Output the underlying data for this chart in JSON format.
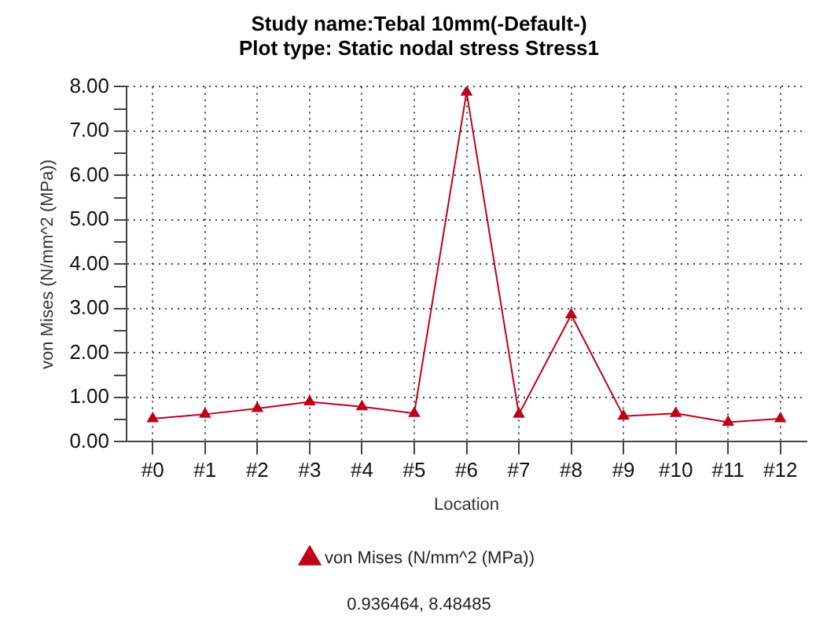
{
  "chart_data": {
    "type": "line",
    "title": "Study name:Tebal 10mm(-Default-)",
    "subtitle": "Plot type: Static nodal stress Stress1",
    "xlabel": "Location",
    "ylabel": "von Mises (N/mm^2 (MPa))",
    "categories": [
      "#0",
      "#1",
      "#2",
      "#3",
      "#4",
      "#5",
      "#6",
      "#7",
      "#8",
      "#9",
      "#10",
      "#11",
      "#12"
    ],
    "series": [
      {
        "name": "von Mises (N/mm^2 (MPa))",
        "color": "#c0001a",
        "values": [
          0.52,
          0.62,
          0.75,
          0.9,
          0.79,
          0.64,
          7.88,
          0.62,
          2.86,
          0.58,
          0.64,
          0.44,
          0.52
        ]
      }
    ],
    "ylim": [
      0,
      8
    ],
    "yticks": [
      {
        "value": 0,
        "label": "0.00"
      },
      {
        "value": 0.5,
        "label": null
      },
      {
        "value": 1,
        "label": "1.00"
      },
      {
        "value": 1.5,
        "label": null
      },
      {
        "value": 2,
        "label": "2.00"
      },
      {
        "value": 2.5,
        "label": null
      },
      {
        "value": 3,
        "label": "3.00"
      },
      {
        "value": 3.5,
        "label": null
      },
      {
        "value": 4,
        "label": "4.00"
      },
      {
        "value": 4.5,
        "label": null
      },
      {
        "value": 5,
        "label": "5.00"
      },
      {
        "value": 5.5,
        "label": null
      },
      {
        "value": 6,
        "label": "6.00"
      },
      {
        "value": 6.5,
        "label": null
      },
      {
        "value": 7,
        "label": "7.00"
      },
      {
        "value": 7.5,
        "label": null
      },
      {
        "value": 8,
        "label": "8.00"
      }
    ],
    "grid": true,
    "legend": "bottom",
    "marker": "triangle",
    "line_style": "solid",
    "annotations": [
      "0.936464, 8.48485"
    ]
  }
}
